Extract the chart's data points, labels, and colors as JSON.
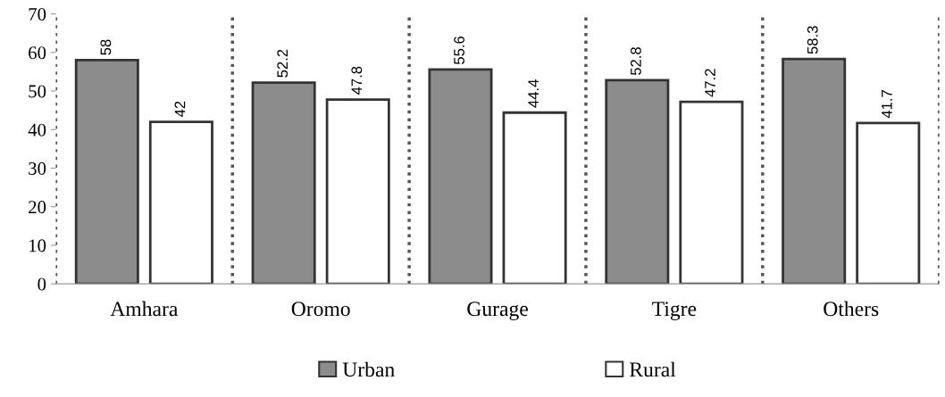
{
  "chart_data": {
    "type": "bar",
    "categories": [
      "Amhara",
      "Oromo",
      "Gurage",
      "Tigre",
      "Others"
    ],
    "series": [
      {
        "name": "Urban",
        "color": "#8c8c8c",
        "values": [
          58,
          52.2,
          55.6,
          52.8,
          58.3
        ]
      },
      {
        "name": "Rural",
        "color": "#ffffff",
        "values": [
          42,
          47.8,
          44.4,
          47.2,
          41.7
        ]
      }
    ],
    "ylim": [
      0,
      70
    ],
    "yticks": [
      0,
      10,
      20,
      30,
      40,
      50,
      60,
      70
    ],
    "grid": "x",
    "legend": "bottom",
    "data_labels": true
  }
}
